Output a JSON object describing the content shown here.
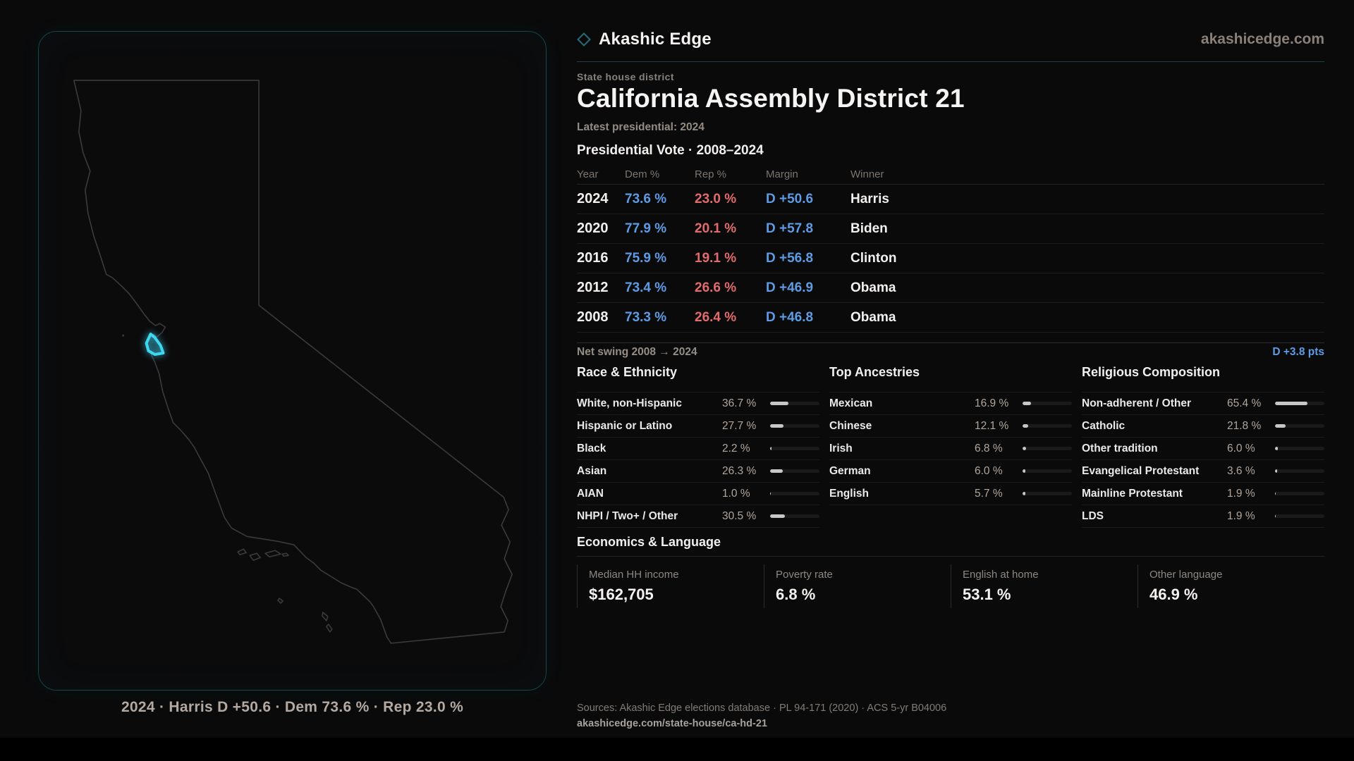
{
  "brand": {
    "name": "Akashic Edge",
    "domain": "akashicedge.com",
    "logo_icon": "diamond-icon"
  },
  "header": {
    "kicker": "State house district",
    "title": "California Assembly District 21",
    "subtitle": "Latest presidential: 2024"
  },
  "map": {
    "caption": "2024 · Harris D +50.6 · Dem 73.6 % · Rep 23.0 %",
    "highlight_color": "#3fd6f2",
    "outline_color": "#3b3b3d",
    "panel_border_color": "#17444d"
  },
  "vote_table": {
    "title": "Presidential Vote · 2008–2024",
    "columns": [
      "Year",
      "Dem %",
      "Rep %",
      "Margin",
      "Winner"
    ],
    "rows": [
      {
        "year": "2024",
        "dem": "73.6 %",
        "rep": "23.0 %",
        "margin": "D +50.6",
        "winner": "Harris"
      },
      {
        "year": "2020",
        "dem": "77.9 %",
        "rep": "20.1 %",
        "margin": "D +57.8",
        "winner": "Biden"
      },
      {
        "year": "2016",
        "dem": "75.9 %",
        "rep": "19.1 %",
        "margin": "D +56.8",
        "winner": "Clinton"
      },
      {
        "year": "2012",
        "dem": "73.4 %",
        "rep": "26.6 %",
        "margin": "D +46.9",
        "winner": "Obama"
      },
      {
        "year": "2008",
        "dem": "73.3 %",
        "rep": "26.4 %",
        "margin": "D +46.8",
        "winner": "Obama"
      }
    ],
    "net_swing_label": "Net swing 2008 → 2024",
    "net_swing_value": "D +3.8 pts"
  },
  "demographics": [
    {
      "title": "Race & Ethnicity",
      "rows": [
        {
          "label": "White, non-Hispanic",
          "value": "36.7 %",
          "pct": 36.7
        },
        {
          "label": "Hispanic or Latino",
          "value": "27.7 %",
          "pct": 27.7
        },
        {
          "label": "Black",
          "value": "2.2 %",
          "pct": 2.2
        },
        {
          "label": "Asian",
          "value": "26.3 %",
          "pct": 26.3
        },
        {
          "label": "AIAN",
          "value": "1.0 %",
          "pct": 1.0
        },
        {
          "label": "NHPI / Two+ / Other",
          "value": "30.5 %",
          "pct": 30.5
        }
      ]
    },
    {
      "title": "Top Ancestries",
      "rows": [
        {
          "label": "Mexican",
          "value": "16.9 %",
          "pct": 16.9
        },
        {
          "label": "Chinese",
          "value": "12.1 %",
          "pct": 12.1
        },
        {
          "label": "Irish",
          "value": "6.8 %",
          "pct": 6.8
        },
        {
          "label": "German",
          "value": "6.0 %",
          "pct": 6.0
        },
        {
          "label": "English",
          "value": "5.7 %",
          "pct": 5.7
        }
      ]
    },
    {
      "title": "Religious Composition",
      "rows": [
        {
          "label": "Non-adherent / Other",
          "value": "65.4 %",
          "pct": 65.4
        },
        {
          "label": "Catholic",
          "value": "21.8 %",
          "pct": 21.8
        },
        {
          "label": "Other tradition",
          "value": "6.0 %",
          "pct": 6.0
        },
        {
          "label": "Evangelical Protestant",
          "value": "3.6 %",
          "pct": 3.6
        },
        {
          "label": "Mainline Protestant",
          "value": "1.9 %",
          "pct": 1.9
        },
        {
          "label": "LDS",
          "value": "1.9 %",
          "pct": 1.9
        }
      ]
    }
  ],
  "economics": {
    "title": "Economics & Language",
    "stats": [
      {
        "label": "Median HH income",
        "value": "$162,705"
      },
      {
        "label": "Poverty rate",
        "value": "6.8 %"
      },
      {
        "label": "English at home",
        "value": "53.1 %"
      },
      {
        "label": "Other language",
        "value": "46.9 %"
      }
    ]
  },
  "footer": {
    "sources": "Sources: Akashic Edge elections database · PL 94-171 (2020) · ACS 5-yr B04006",
    "permalink": "akashicedge.com/state-house/ca-hd-21"
  },
  "colors": {
    "dem": "#5d9ce5",
    "rep": "#e26b6b",
    "accent": "#3fd6f2"
  }
}
